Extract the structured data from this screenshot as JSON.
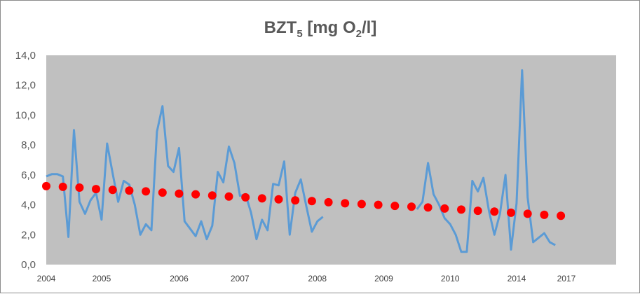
{
  "chart_data": {
    "type": "line",
    "title": "BZT",
    "title_subscript": "5",
    "title_unit_prefix": " [mg O",
    "title_unit_subscript": "2",
    "title_unit_suffix": "/l]",
    "xlabel": "",
    "ylabel": "",
    "ylim": [
      0,
      14
    ],
    "y_ticks": [
      "0,0",
      "2,0",
      "4,0",
      "6,0",
      "8,0",
      "10,0",
      "12,0",
      "14,0"
    ],
    "x_ticks": [
      {
        "label": "2004",
        "index": 0
      },
      {
        "label": "2005",
        "index": 10
      },
      {
        "label": "2006",
        "index": 24
      },
      {
        "label": "2007",
        "index": 35
      },
      {
        "label": "2008",
        "index": 49
      },
      {
        "label": "2009",
        "index": 61
      },
      {
        "label": "2010",
        "index": 73
      },
      {
        "label": "2014",
        "index": 85
      },
      {
        "label": "2017",
        "index": 94
      }
    ],
    "n_points": 104,
    "grid": false,
    "plot_background": "#c0c0c0",
    "series": [
      {
        "kind": "line",
        "color": "#5b9bd5",
        "segments": [
          {
            "start": 0,
            "values": [
              5.9,
              6.05,
              6.05,
              5.9,
              1.85,
              9.0,
              4.2,
              3.4,
              4.3,
              4.8,
              3.0,
              8.1,
              6.1,
              4.2,
              5.6,
              5.35,
              4.0,
              2.0,
              2.7,
              2.3,
              8.9,
              10.6,
              6.6,
              6.2,
              7.8,
              2.9,
              2.4,
              1.9,
              2.9,
              1.7,
              2.6,
              6.2,
              5.5,
              7.9,
              6.8,
              4.6,
              4.7,
              3.5,
              1.7,
              3.0,
              2.3,
              5.4,
              5.3,
              6.9,
              2.0,
              4.8,
              5.7,
              3.9,
              2.2,
              2.9,
              3.2
            ]
          },
          {
            "start": 67,
            "values": [
              3.7,
              4.2,
              6.8,
              4.7,
              4.0,
              3.1,
              2.7,
              2.0,
              0.85,
              0.85,
              5.6,
              4.9,
              5.8,
              3.6,
              2.0,
              3.4,
              6.0,
              1.0,
              4.1,
              13.0,
              4.5,
              1.5,
              1.8,
              2.1,
              1.5,
              1.3
            ]
          }
        ]
      },
      {
        "kind": "trend",
        "color": "#ff0000",
        "x": [
          0,
          3,
          6,
          9,
          12,
          15,
          18,
          21,
          24,
          27,
          30,
          33,
          36,
          39,
          42,
          45,
          48,
          51,
          54,
          57,
          60,
          63,
          66,
          69,
          72,
          75,
          78,
          81,
          84,
          87,
          90,
          93
        ],
        "values": [
          5.25,
          5.2,
          5.15,
          5.05,
          5.0,
          4.95,
          4.9,
          4.82,
          4.75,
          4.7,
          4.62,
          4.55,
          4.5,
          4.43,
          4.37,
          4.3,
          4.25,
          4.17,
          4.1,
          4.05,
          4.0,
          3.93,
          3.87,
          3.82,
          3.75,
          3.68,
          3.6,
          3.55,
          3.47,
          3.4,
          3.33,
          3.27
        ]
      }
    ]
  }
}
